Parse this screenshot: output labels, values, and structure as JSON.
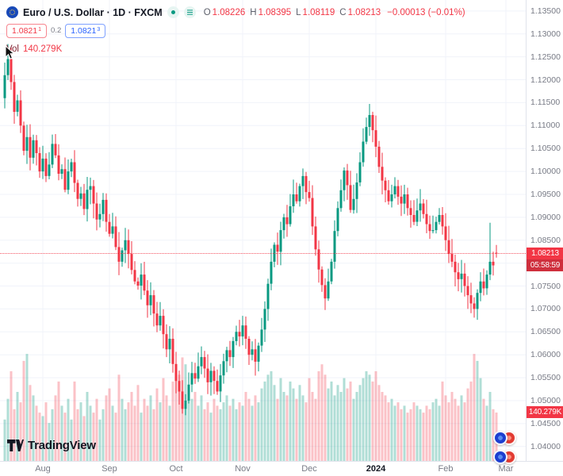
{
  "header": {
    "symbol_title": "Euro / U.S. Dollar · 1D · FXCM",
    "ohlc": {
      "o_label": "O",
      "o": "1.08226",
      "h_label": "H",
      "h": "1.08395",
      "l_label": "L",
      "l": "1.08119",
      "c_label": "C",
      "c": "1.08213",
      "change": "−0.00013 (−0.01%)"
    },
    "sell": "1.0821",
    "sell_sup": "1",
    "spread": "0.2",
    "buy": "1.0821",
    "buy_sup": "3",
    "vol_label": "Vol",
    "vol_value": "140.279K"
  },
  "axis": {
    "price_badge": "1.08213",
    "countdown": "05:58:59",
    "volume_badge": "140.279K"
  },
  "footer": {
    "logo_text": "TradingView"
  },
  "colors": {
    "up": "#089981",
    "down": "#f23645",
    "vol_up": "rgba(8,153,129,0.32)",
    "vol_down": "rgba(242,54,69,0.30)",
    "grid": "#f0f3fa",
    "axis_text": "#787b86",
    "badge_bg": "#f23645",
    "accent_blue": "#2962ff"
  },
  "chart_data": {
    "type": "candlestick",
    "title": "Euro / U.S. Dollar",
    "symbol": "EURUSD",
    "timeframe": "1D",
    "exchange": "FXCM",
    "legend_position": "top-left",
    "grid": true,
    "price_axis": {
      "min": 1.04,
      "max": 1.135,
      "step": 0.005
    },
    "current_price": 1.08213,
    "countdown": "05:58:59",
    "volume_current_k": 140.279,
    "last": {
      "open": 1.08226,
      "high": 1.08395,
      "low": 1.08119,
      "close": 1.08213,
      "change": -0.00013,
      "change_pct": -0.01
    },
    "month_ticks": [
      {
        "label": "Aug",
        "i": 12
      },
      {
        "label": "Sep",
        "i": 33
      },
      {
        "label": "Oct",
        "i": 54
      },
      {
        "label": "Nov",
        "i": 75
      },
      {
        "label": "Dec",
        "i": 96
      },
      {
        "label": "2024",
        "i": 117,
        "strong": true
      },
      {
        "label": "Feb",
        "i": 139
      },
      {
        "label": "Mar",
        "i": 158
      }
    ],
    "first_open": 1.116,
    "wick_overrides": [
      {
        "i": 1,
        "h": 1.1278
      },
      {
        "i": 153,
        "h": 1.0888
      }
    ],
    "closes": [
      1.121,
      1.1245,
      1.1195,
      1.113,
      1.1155,
      1.11,
      1.1045,
      1.1075,
      1.103,
      1.1068,
      1.104,
      1.1,
      1.1028,
      1.099,
      1.1015,
      1.106,
      1.1035,
      1.0995,
      1.1005,
      1.096,
      1.1,
      1.102,
      1.0975,
      1.094,
      1.0952,
      1.0918,
      1.096,
      1.0968,
      1.093,
      1.0895,
      1.0907,
      1.0938,
      1.089,
      1.0864,
      1.088,
      1.0835,
      1.0803,
      1.0828,
      1.085,
      1.082,
      1.0785,
      1.076,
      1.0751,
      1.0775,
      1.074,
      1.0708,
      1.073,
      1.069,
      1.0664,
      1.0685,
      1.0645,
      1.0612,
      1.0635,
      1.058,
      1.0543,
      1.052,
      1.0482,
      1.05,
      1.0535,
      1.056,
      1.0548,
      1.0575,
      1.0595,
      1.057,
      1.054,
      1.0565,
      1.0543,
      1.052,
      1.0555,
      1.0586,
      1.061,
      1.0595,
      1.063,
      1.065,
      1.064,
      1.0664,
      1.0635,
      1.06,
      1.0612,
      1.0585,
      1.062,
      1.0655,
      1.07,
      1.0755,
      1.0803,
      1.084,
      1.0825,
      1.0872,
      1.09,
      1.0885,
      1.0924,
      1.095,
      1.0935,
      1.0968,
      1.099,
      1.0955,
      1.0942,
      1.088,
      1.083,
      1.0786,
      1.0752,
      1.0723,
      1.076,
      1.0803,
      1.087,
      1.092,
      1.0959,
      1.1002,
      1.097,
      1.0916,
      1.094,
      1.0976,
      1.102,
      1.1065,
      1.1097,
      1.1123,
      1.109,
      1.1054,
      1.101,
      1.098,
      1.0959,
      1.0935,
      1.095,
      1.0968,
      1.0945,
      1.093,
      1.095,
      1.092,
      1.0905,
      1.089,
      1.0915,
      1.093,
      1.0907,
      1.0885,
      1.087,
      1.0872,
      1.089,
      1.0905,
      1.088,
      1.085,
      1.082,
      1.0803,
      1.078,
      1.0765,
      1.0777,
      1.075,
      1.073,
      1.0712,
      1.07,
      1.0735,
      1.076,
      1.0745,
      1.0775,
      1.0803,
      1.0795,
      1.08213
    ],
    "volumes_k": [
      120,
      180,
      260,
      150,
      200,
      170,
      290,
      310,
      220,
      190,
      160,
      140,
      130,
      170,
      110,
      150,
      190,
      230,
      160,
      140,
      180,
      120,
      230,
      150,
      170,
      130,
      200,
      160,
      140,
      180,
      120,
      150,
      190,
      210,
      160,
      140,
      250,
      180,
      150,
      170,
      200,
      160,
      220,
      140,
      180,
      160,
      190,
      150,
      210,
      170,
      240,
      190,
      160,
      230,
      270,
      250,
      300,
      280,
      220,
      180,
      200,
      160,
      190,
      150,
      170,
      140,
      180,
      160,
      150,
      170,
      190,
      160,
      180,
      150,
      170,
      160,
      200,
      180,
      160,
      190,
      170,
      210,
      230,
      250,
      260,
      220,
      180,
      240,
      200,
      190,
      230,
      210,
      180,
      220,
      190,
      170,
      240,
      200,
      180,
      260,
      280,
      250,
      210,
      230,
      190,
      220,
      200,
      240,
      210,
      230,
      180,
      200,
      220,
      240,
      260,
      250,
      230,
      260,
      220,
      200,
      190,
      170,
      180,
      160,
      170,
      150,
      160,
      140,
      150,
      170,
      160,
      150,
      140,
      160,
      150,
      170,
      180,
      160,
      230,
      190,
      170,
      200,
      180,
      160,
      190,
      170,
      210,
      230,
      310,
      290,
      240,
      180,
      160,
      200,
      150,
      140.279
    ]
  }
}
